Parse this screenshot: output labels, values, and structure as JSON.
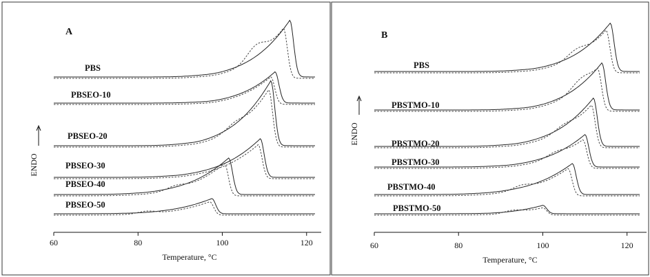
{
  "chart_data": [
    {
      "type": "line",
      "panel": "A",
      "xlabel": "Temperature, °C",
      "ylabel": "ENDO",
      "xlim": [
        60,
        122
      ],
      "xticks": [
        60,
        80,
        100,
        120
      ],
      "grid": false,
      "series": [
        {
          "name": "PBS",
          "peak_solid": 116,
          "peak_dashed": 114.5,
          "extra_peak_dashed": 108,
          "onset": 96,
          "baseline": 0
        },
        {
          "name": "PBSEO-10",
          "peak_solid": 112.5,
          "peak_dashed": 111.5,
          "extra_peak_dashed": null,
          "onset": 95,
          "baseline": 0
        },
        {
          "name": "PBSEO-20",
          "peak_solid": 111.5,
          "peak_dashed": 111,
          "extra_peak_dashed": 103,
          "onset": 92,
          "baseline": 0
        },
        {
          "name": "PBSEO-30",
          "peak_solid": 109,
          "peak_dashed": 108.5,
          "extra_peak_dashed": null,
          "onset": 88,
          "baseline": 0
        },
        {
          "name": "PBSEO-40",
          "peak_solid": 101.5,
          "peak_dashed": 100.5,
          "extra_peak_dashed": 89,
          "onset": 80,
          "baseline": 0
        },
        {
          "name": "PBSEO-50",
          "peak_solid": 97.5,
          "peak_dashed": 97,
          "extra_peak_dashed": 82,
          "onset": 78,
          "baseline": 0
        }
      ]
    },
    {
      "type": "line",
      "panel": "B",
      "xlabel": "Temperature, °C",
      "ylabel": "ENDO",
      "xlim": [
        60,
        123
      ],
      "xticks": [
        60,
        80,
        100,
        120
      ],
      "grid": false,
      "series": [
        {
          "name": "PBS",
          "peak_solid": 116,
          "peak_dashed": 115,
          "extra_peak_dashed": 108,
          "onset": 96,
          "baseline": 0
        },
        {
          "name": "PBSTMO-10",
          "peak_solid": 114,
          "peak_dashed": 113,
          "extra_peak_dashed": 109,
          "onset": 95,
          "baseline": 0
        },
        {
          "name": "PBSTMO-20",
          "peak_solid": 112,
          "peak_dashed": 111.5,
          "extra_peak_dashed": 105,
          "onset": 92,
          "baseline": 0
        },
        {
          "name": "PBSTMO-30",
          "peak_solid": 110,
          "peak_dashed": 109.5,
          "extra_peak_dashed": 103,
          "onset": 90,
          "baseline": 0
        },
        {
          "name": "PBSTMO-40",
          "peak_solid": 107,
          "peak_dashed": 106,
          "extra_peak_dashed": 95,
          "onset": 85,
          "baseline": 0
        },
        {
          "name": "PBSTMO-50",
          "peak_solid": 100,
          "peak_dashed": 100,
          "extra_peak_dashed": 93,
          "onset": 85,
          "baseline": 0
        }
      ]
    }
  ]
}
